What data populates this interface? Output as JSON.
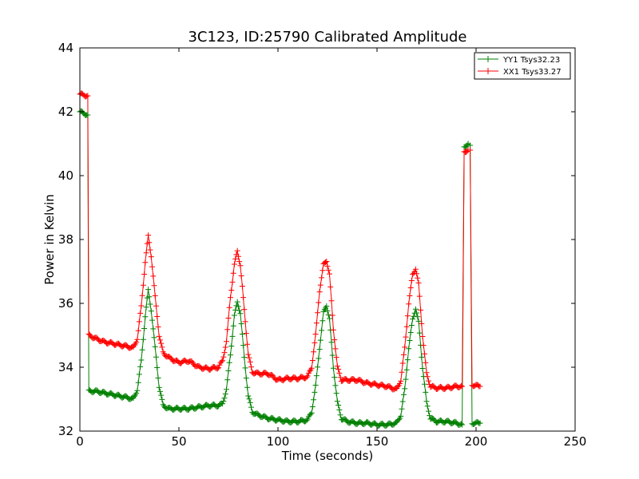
{
  "chart_data": {
    "type": "line",
    "title": "3C123, ID:25790 Calibrated Amplitude",
    "xlabel": "Time (seconds)",
    "ylabel": "Power in Kelvin",
    "xlim": [
      0,
      250
    ],
    "ylim": [
      32,
      44
    ],
    "xticks": [
      "0",
      "50",
      "100",
      "150",
      "200",
      "250"
    ],
    "yticks": [
      "32",
      "34",
      "36",
      "38",
      "40",
      "42",
      "44"
    ],
    "grid": false,
    "legend_position": "top-right",
    "marker": "+",
    "series": [
      {
        "name": "YY1 Tsys32.23",
        "color": "#008000",
        "points": [
          [
            0,
            42.0
          ],
          [
            4,
            41.9
          ],
          [
            4.5,
            33.25
          ],
          [
            8,
            33.25
          ],
          [
            12,
            33.2
          ],
          [
            16,
            33.15
          ],
          [
            20,
            33.1
          ],
          [
            24,
            33.05
          ],
          [
            27,
            33.0
          ],
          [
            29,
            33.3
          ],
          [
            31,
            34.2
          ],
          [
            33,
            35.6
          ],
          [
            34.5,
            36.4
          ],
          [
            36,
            35.8
          ],
          [
            38,
            34.6
          ],
          [
            40,
            33.4
          ],
          [
            42,
            32.8
          ],
          [
            45,
            32.7
          ],
          [
            50,
            32.7
          ],
          [
            55,
            32.7
          ],
          [
            60,
            32.75
          ],
          [
            65,
            32.8
          ],
          [
            70,
            32.8
          ],
          [
            72,
            32.85
          ],
          [
            74,
            33.3
          ],
          [
            76,
            34.4
          ],
          [
            78,
            35.6
          ],
          [
            79.5,
            36.05
          ],
          [
            81,
            35.7
          ],
          [
            83,
            34.3
          ],
          [
            85,
            33.1
          ],
          [
            87,
            32.6
          ],
          [
            90,
            32.5
          ],
          [
            95,
            32.4
          ],
          [
            100,
            32.35
          ],
          [
            105,
            32.3
          ],
          [
            110,
            32.3
          ],
          [
            115,
            32.35
          ],
          [
            117,
            32.6
          ],
          [
            119,
            33.4
          ],
          [
            121,
            34.6
          ],
          [
            123,
            35.7
          ],
          [
            124.5,
            35.95
          ],
          [
            126,
            35.5
          ],
          [
            128,
            34.0
          ],
          [
            130,
            32.9
          ],
          [
            132,
            32.4
          ],
          [
            135,
            32.3
          ],
          [
            140,
            32.25
          ],
          [
            145,
            32.25
          ],
          [
            150,
            32.2
          ],
          [
            155,
            32.2
          ],
          [
            160,
            32.25
          ],
          [
            162,
            32.5
          ],
          [
            164,
            33.3
          ],
          [
            166,
            34.6
          ],
          [
            168,
            35.5
          ],
          [
            169.5,
            35.85
          ],
          [
            171,
            35.4
          ],
          [
            173,
            34.0
          ],
          [
            175,
            32.9
          ],
          [
            177,
            32.4
          ],
          [
            180,
            32.3
          ],
          [
            185,
            32.3
          ],
          [
            190,
            32.25
          ],
          [
            193,
            32.2
          ],
          [
            194,
            40.9
          ],
          [
            196,
            41.0
          ],
          [
            197,
            40.95
          ],
          [
            198,
            32.25
          ],
          [
            202,
            32.25
          ]
        ]
      },
      {
        "name": "XX1 Tsys33.27",
        "color": "#ff0000",
        "points": [
          [
            0,
            42.55
          ],
          [
            4,
            42.5
          ],
          [
            4.5,
            35.0
          ],
          [
            8,
            34.9
          ],
          [
            12,
            34.8
          ],
          [
            16,
            34.75
          ],
          [
            20,
            34.7
          ],
          [
            24,
            34.65
          ],
          [
            27,
            34.6
          ],
          [
            29,
            34.9
          ],
          [
            31,
            35.9
          ],
          [
            33,
            37.3
          ],
          [
            34.5,
            38.1
          ],
          [
            36,
            37.5
          ],
          [
            38,
            36.2
          ],
          [
            40,
            35.0
          ],
          [
            42,
            34.45
          ],
          [
            45,
            34.3
          ],
          [
            48,
            34.2
          ],
          [
            50,
            34.15
          ],
          [
            55,
            34.2
          ],
          [
            60,
            34.0
          ],
          [
            65,
            33.95
          ],
          [
            70,
            34.0
          ],
          [
            72,
            34.2
          ],
          [
            74,
            34.8
          ],
          [
            76,
            36.2
          ],
          [
            78,
            37.2
          ],
          [
            79.5,
            37.65
          ],
          [
            81,
            37.2
          ],
          [
            83,
            35.8
          ],
          [
            85,
            34.4
          ],
          [
            87,
            33.85
          ],
          [
            90,
            33.8
          ],
          [
            95,
            33.8
          ],
          [
            100,
            33.6
          ],
          [
            105,
            33.65
          ],
          [
            110,
            33.65
          ],
          [
            115,
            33.7
          ],
          [
            117,
            34.0
          ],
          [
            119,
            35.0
          ],
          [
            121,
            36.4
          ],
          [
            123,
            37.2
          ],
          [
            124.5,
            37.35
          ],
          [
            126,
            36.9
          ],
          [
            128,
            35.2
          ],
          [
            130,
            34.0
          ],
          [
            132,
            33.6
          ],
          [
            135,
            33.6
          ],
          [
            140,
            33.6
          ],
          [
            145,
            33.5
          ],
          [
            150,
            33.45
          ],
          [
            155,
            33.4
          ],
          [
            160,
            33.3
          ],
          [
            162,
            33.6
          ],
          [
            164,
            34.6
          ],
          [
            166,
            36.0
          ],
          [
            168,
            36.9
          ],
          [
            169.5,
            37.1
          ],
          [
            171,
            36.6
          ],
          [
            173,
            35.0
          ],
          [
            175,
            33.8
          ],
          [
            177,
            33.4
          ],
          [
            180,
            33.35
          ],
          [
            185,
            33.35
          ],
          [
            190,
            33.4
          ],
          [
            193,
            33.4
          ],
          [
            194,
            40.75
          ],
          [
            196,
            40.8
          ],
          [
            197,
            40.8
          ],
          [
            198,
            33.45
          ],
          [
            202,
            33.4
          ]
        ]
      }
    ]
  }
}
